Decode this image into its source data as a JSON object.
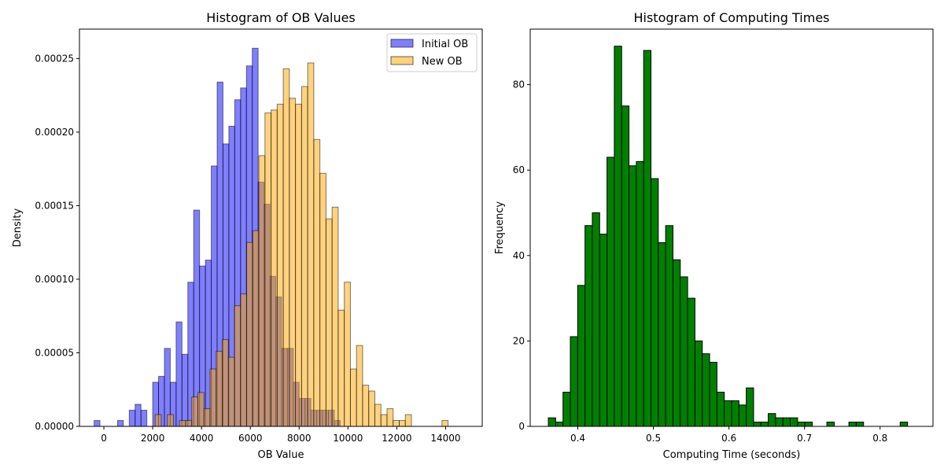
{
  "chart_data": [
    {
      "type": "histogram",
      "title": "Histogram of OB Values",
      "xlabel": "OB Value",
      "ylabel": "Density",
      "xlim": [
        -1000,
        15500
      ],
      "ylim": [
        0,
        0.00027
      ],
      "xticks": [
        0,
        2000,
        4000,
        6000,
        8000,
        10000,
        12000,
        14000
      ],
      "xtick_labels": [
        "0",
        "2000",
        "4000",
        "6000",
        "8000",
        "10000",
        "12000",
        "14000"
      ],
      "yticks": [
        0,
        5e-05,
        0.0001,
        0.00015,
        0.0002,
        0.00025
      ],
      "ytick_labels": [
        "0.00000",
        "0.00005",
        "0.00010",
        "0.00015",
        "0.00020",
        "0.00025"
      ],
      "legend_position": "top-right",
      "series": [
        {
          "name": "Initial OB",
          "color": "#0000ff",
          "alpha": 0.5,
          "bin_start": -400,
          "bin_width": 240,
          "density": [
            4e-06,
            0,
            0,
            0,
            4e-06,
            0,
            1.1e-05,
            1.5e-05,
            1.1e-05,
            0,
            3e-05,
            3.4e-05,
            5.3e-05,
            3e-05,
            7.1e-05,
            4.9e-05,
            9.8e-05,
            0.000147,
            0.000109,
            0.000113,
            0.000177,
            0.000234,
            0.000192,
            0.000204,
            0.000222,
            0.00023,
            0.000245,
            0.000257,
            0.000166,
            0.000151,
            0.000102,
            8.8e-05,
            5.3e-05,
            5.3e-05,
            3e-05,
            1.9e-05,
            1.9e-05,
            1.1e-05,
            1.1e-05,
            1.1e-05,
            1.1e-05,
            4e-06
          ]
        },
        {
          "name": "New OB",
          "color": "#ffa500",
          "alpha": 0.5,
          "bin_start": 2100,
          "bin_width": 250,
          "density": [
            8e-06,
            0,
            8e-06,
            0,
            4e-06,
            4e-06,
            2e-05,
            2.3e-05,
            1.2e-05,
            3.9e-05,
            5.1e-05,
            5.9e-05,
            4.7e-05,
            8.2e-05,
            9e-05,
            0.000125,
            0.000133,
            0.000184,
            0.000213,
            0.000215,
            0.000219,
            0.000243,
            0.000223,
            0.000219,
            0.000231,
            0.000247,
            0.000195,
            0.000172,
            0.000141,
            0.000149,
            7.9e-05,
            9.8e-05,
            3.9e-05,
            5.5e-05,
            2.8e-05,
            2.4e-05,
            1.5e-05,
            8e-06,
            1.2e-05,
            4e-06,
            4e-06,
            8e-06,
            0,
            0,
            0,
            0,
            0,
            4e-06
          ]
        }
      ]
    },
    {
      "type": "histogram",
      "title": "Histogram of Computing Times",
      "xlabel": "Computing Time (seconds)",
      "ylabel": "Frequency",
      "xlim": [
        0.337,
        0.87
      ],
      "ylim": [
        0,
        93
      ],
      "xticks": [
        0.4,
        0.5,
        0.6,
        0.7,
        0.8
      ],
      "xtick_labels": [
        "0.4",
        "0.5",
        "0.6",
        "0.7",
        "0.8"
      ],
      "yticks": [
        0,
        20,
        40,
        60,
        80
      ],
      "ytick_labels": [
        "0",
        "20",
        "40",
        "60",
        "80"
      ],
      "series": [
        {
          "name": "",
          "color": "#008000",
          "alpha": 1,
          "bin_start": 0.361,
          "bin_width": 0.0097,
          "counts": [
            2,
            1,
            8,
            21,
            33,
            47,
            50,
            45,
            63,
            89,
            75,
            61,
            62,
            88,
            58,
            43,
            47,
            39,
            35,
            30,
            20,
            17,
            15,
            8,
            6,
            6,
            5,
            9,
            1,
            1,
            3,
            2,
            2,
            2,
            1,
            1,
            0,
            0,
            1,
            0,
            0,
            1,
            1,
            0,
            0,
            0,
            0,
            0,
            1
          ]
        }
      ]
    }
  ]
}
